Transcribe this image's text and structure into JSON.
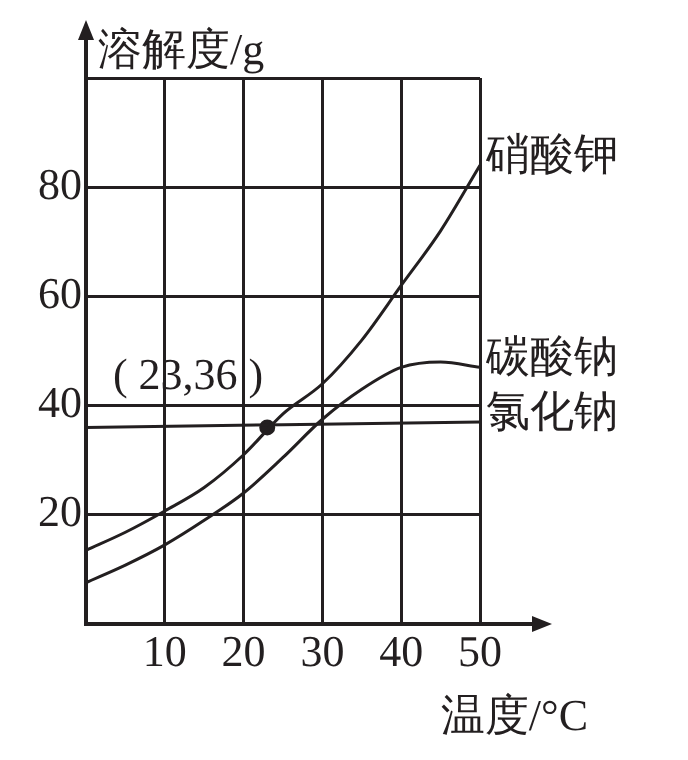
{
  "chart_data": {
    "type": "line",
    "xlabel": "温度/°C",
    "ylabel": "溶解度/g",
    "xlim": [
      0,
      50
    ],
    "xticks": [
      10,
      20,
      30,
      40,
      50
    ],
    "ylim": [
      0,
      100
    ],
    "yticks": [
      20,
      40,
      60,
      80,
      {
        "value": 100,
        "label": null
      }
    ],
    "grid": true,
    "legend": false,
    "marker": "none",
    "line_style": "solid",
    "series": [
      {
        "name": "硝酸钾",
        "color": "#231f20",
        "x": [
          0,
          5,
          10,
          15,
          20,
          25,
          30,
          35,
          40,
          45,
          50
        ],
        "values": [
          13.5,
          16.8,
          20.7,
          25,
          31,
          38.5,
          44,
          52,
          62,
          72,
          84
        ]
      },
      {
        "name": "碳酸钠",
        "color": "#231f20",
        "x": [
          0,
          5,
          10,
          15,
          20,
          25,
          30,
          35,
          40,
          45,
          50
        ],
        "values": [
          7.6,
          10.8,
          14.5,
          19,
          24,
          30.5,
          37.5,
          43,
          47,
          48,
          47
        ]
      },
      {
        "name": "氯化钠",
        "color": "#231f20",
        "x": [
          0,
          50
        ],
        "values": [
          36,
          37
        ]
      },
      {
        "type": "scatter",
        "color": "#231f20",
        "x": [
          23
        ],
        "values": [
          36
        ],
        "marker": "circle"
      }
    ],
    "annotations": [
      {
        "text": "( 23,36 )",
        "x": 23,
        "y": 36
      }
    ]
  }
}
